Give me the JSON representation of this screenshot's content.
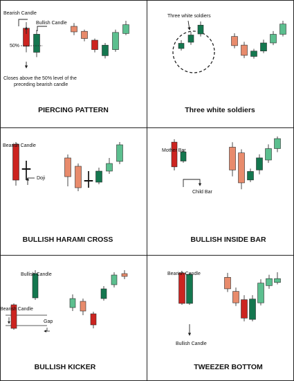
{
  "colors": {
    "bull_dark": "#14774f",
    "bull_light": "#5cbf8f",
    "bear_dark": "#cc2420",
    "bear_light": "#e88b6c",
    "wick": "#333333",
    "border": "#222222"
  },
  "panels": [
    {
      "id": "piercing-pattern",
      "title": "PIERCING PATTERN",
      "annotations": {
        "bearish": "Bearish Candle",
        "bullish": "Bullish Candle",
        "level": "50%",
        "note_line1": "Closes above the 50% level of the",
        "note_line2": "preceding bearish candle"
      },
      "pattern": [
        {
          "dir": "bear",
          "open": 7,
          "close": 4,
          "high": 8,
          "low": 3
        },
        {
          "dir": "bull",
          "open": 3,
          "close": 6,
          "high": 6.7,
          "low": 2.2
        }
      ],
      "example": [
        {
          "dir": "bear",
          "open": 8.6,
          "close": 7.6,
          "high": 9.2,
          "low": 7.0
        },
        {
          "dir": "bear",
          "open": 7.7,
          "close": 6.4,
          "high": 8.0,
          "low": 5.9
        },
        {
          "dir": "bear",
          "open": 6.1,
          "close": 4.4,
          "high": 6.4,
          "low": 3.9
        },
        {
          "dir": "bull",
          "open": 3.3,
          "close": 5.2,
          "high": 5.6,
          "low": 2.8
        },
        {
          "dir": "bull",
          "open": 4.4,
          "close": 7.5,
          "high": 8.0,
          "low": 4.0
        },
        {
          "dir": "bull",
          "open": 7.3,
          "close": 8.9,
          "high": 9.6,
          "low": 7.0
        }
      ]
    },
    {
      "id": "three-white-soldiers",
      "title": "Three white soldiers",
      "annotations": {
        "label": "Three white soldiers"
      },
      "pattern": [
        {
          "dir": "bull",
          "open": 3.0,
          "close": 4.0,
          "high": 4.6,
          "low": 2.6
        },
        {
          "dir": "bull",
          "open": 4.2,
          "close": 5.6,
          "high": 6.2,
          "low": 3.7
        },
        {
          "dir": "bull",
          "open": 5.8,
          "close": 7.5,
          "high": 8.2,
          "low": 5.3
        }
      ],
      "example": [
        {
          "dir": "bear",
          "open": 7.0,
          "close": 5.3,
          "high": 7.6,
          "low": 4.8
        },
        {
          "dir": "bear",
          "open": 5.4,
          "close": 3.5,
          "high": 6.0,
          "low": 3.0
        },
        {
          "dir": "bull",
          "open": 3.3,
          "close": 4.3,
          "high": 4.7,
          "low": 2.9
        },
        {
          "dir": "bull",
          "open": 4.3,
          "close": 5.8,
          "high": 6.4,
          "low": 3.9
        },
        {
          "dir": "bull",
          "open": 5.8,
          "close": 7.4,
          "high": 8.0,
          "low": 5.4
        },
        {
          "dir": "bull",
          "open": 7.4,
          "close": 9.3,
          "high": 9.9,
          "low": 7.0
        }
      ]
    },
    {
      "id": "bullish-harami-cross",
      "title": "BULLISH HARAMI CROSS",
      "annotations": {
        "bearish": "Bearish Candle",
        "doji": "Doji"
      },
      "pattern": [
        {
          "dir": "bear",
          "open": 8.6,
          "close": 3.4,
          "high": 8.9,
          "low": 2.6
        },
        {
          "dir": "doji",
          "open": 5.0,
          "close": 5.0,
          "high": 6.2,
          "low": 3.4
        }
      ],
      "example": [
        {
          "dir": "bear",
          "open": 7.7,
          "close": 5.0,
          "high": 8.2,
          "low": 3.6
        },
        {
          "dir": "bear",
          "open": 6.5,
          "close": 3.4,
          "high": 6.9,
          "low": 2.9
        },
        {
          "dir": "doji",
          "open": 4.4,
          "close": 4.4,
          "high": 5.8,
          "low": 3.4
        },
        {
          "dir": "bull",
          "open": 4.2,
          "close": 5.8,
          "high": 6.3,
          "low": 3.9
        },
        {
          "dir": "bull",
          "open": 5.8,
          "close": 6.9,
          "high": 7.7,
          "low": 5.4
        },
        {
          "dir": "bull",
          "open": 7.2,
          "close": 9.6,
          "high": 10.0,
          "low": 6.8
        }
      ]
    },
    {
      "id": "bullish-inside-bar",
      "title": "BULLISH INSIDE BAR",
      "annotations": {
        "mother": "Mother Bar",
        "child": "Child Bar"
      },
      "pattern": [
        {
          "dir": "bear",
          "open": 7.7,
          "close": 3.4,
          "high": 8.2,
          "low": 2.8
        },
        {
          "dir": "bull",
          "open": 4.4,
          "close": 6.0,
          "high": 6.3,
          "low": 4.1
        }
      ],
      "example": [
        {
          "dir": "bear",
          "open": 8.4,
          "close": 5.2,
          "high": 9.1,
          "low": 4.3
        },
        {
          "dir": "bear",
          "open": 7.6,
          "close": 3.4,
          "high": 8.1,
          "low": 2.5
        },
        {
          "dir": "bull",
          "open": 3.8,
          "close": 5.0,
          "high": 5.4,
          "low": 3.5
        },
        {
          "dir": "bull",
          "open": 5.2,
          "close": 6.9,
          "high": 7.4,
          "low": 4.6
        },
        {
          "dir": "bull",
          "open": 6.6,
          "close": 8.2,
          "high": 8.8,
          "low": 6.2
        },
        {
          "dir": "bull",
          "open": 8.2,
          "close": 9.6,
          "high": 9.9,
          "low": 7.7
        }
      ]
    },
    {
      "id": "bullish-kicker",
      "title": "BULLISH KICKER",
      "annotations": {
        "bullish": "Bullish Candle",
        "bearish": "Bearish Candle",
        "gap": "Gap"
      },
      "pattern": [
        {
          "dir": "bear",
          "open": 4.2,
          "close": 0.8,
          "high": 4.4,
          "low": 0.6
        },
        {
          "dir": "bull",
          "open": 5.2,
          "close": 8.7,
          "high": 9.2,
          "low": 4.9
        }
      ],
      "example": [
        {
          "dir": "bull",
          "open": 5.3,
          "close": 6.6,
          "high": 7.2,
          "low": 4.8
        },
        {
          "dir": "bear",
          "open": 6.2,
          "close": 4.8,
          "high": 6.6,
          "low": 4.2
        },
        {
          "dir": "bear",
          "open": 4.4,
          "close": 2.8,
          "high": 4.7,
          "low": 2.3
        },
        {
          "dir": "bull",
          "open": 6.6,
          "close": 8.0,
          "high": 8.4,
          "low": 6.3
        },
        {
          "dir": "bull",
          "open": 8.6,
          "close": 10.0,
          "high": 10.4,
          "low": 8.2
        },
        {
          "dir": "bear",
          "open": 10.2,
          "close": 9.8,
          "high": 10.7,
          "low": 9.4
        }
      ]
    },
    {
      "id": "tweezer-bottom",
      "title": "TWEEZER BOTTOM",
      "annotations": {
        "bearish": "Bearish Candle",
        "bullish": "Bullish Candle"
      },
      "pattern": [
        {
          "dir": "bear",
          "open": 7.6,
          "close": 3.2,
          "high": 7.9,
          "low": 3.0
        },
        {
          "dir": "bull",
          "open": 3.2,
          "close": 7.4,
          "high": 7.6,
          "low": 3.0
        }
      ],
      "example": [
        {
          "dir": "bear",
          "open": 8.4,
          "close": 6.6,
          "high": 9.1,
          "low": 6.1
        },
        {
          "dir": "bear",
          "open": 6.2,
          "close": 4.4,
          "high": 6.8,
          "low": 3.9
        },
        {
          "dir": "bear",
          "open": 4.9,
          "close": 2.0,
          "high": 5.6,
          "low": 1.5
        },
        {
          "dir": "bull",
          "open": 1.8,
          "close": 5.0,
          "high": 5.6,
          "low": 1.5
        },
        {
          "dir": "bull",
          "open": 4.4,
          "close": 7.5,
          "high": 8.1,
          "low": 4.0
        },
        {
          "dir": "bull",
          "open": 7.1,
          "close": 8.2,
          "high": 8.8,
          "low": 6.6
        },
        {
          "dir": "bull",
          "open": 7.6,
          "close": 8.2,
          "high": 9.2,
          "low": 7.3
        }
      ]
    }
  ]
}
